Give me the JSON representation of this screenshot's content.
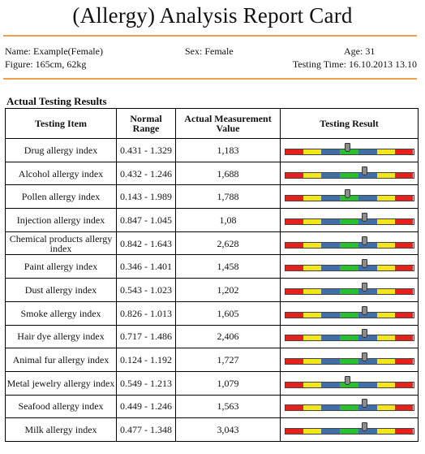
{
  "report": {
    "title": "(Allergy) Analysis Report Card",
    "name_label": "Name:",
    "name": "Example(Female)",
    "sex_label": "Sex:",
    "sex": "Female",
    "age_label": "Age:",
    "age": "31",
    "figure_label": "Figure:",
    "figure": "165cm, 62kg",
    "testing_time_label": "Testing Time:",
    "testing_time": "16.10.2013 13.10",
    "section_title": "Actual Testing Results"
  },
  "table": {
    "headers": {
      "item": "Testing Item",
      "range": "Normal Range",
      "actual": "Actual Measurement Value",
      "result": "Testing Result"
    },
    "rows": [
      {
        "item": "Drug allergy index",
        "range": "0.431 - 1.329",
        "actual": "1,183",
        "level": 0.49
      },
      {
        "item": "Alcohol allergy index",
        "range": "0.432 - 1.246",
        "actual": "1,688",
        "level": 0.62
      },
      {
        "item": "Pollen allergy index",
        "range": "0.143 - 1.989",
        "actual": "1,788",
        "level": 0.49
      },
      {
        "item": "Injection allergy index",
        "range": "0.847 - 1.045",
        "actual": "1,08",
        "level": 0.62
      },
      {
        "item": "Chemical products allergy index",
        "range": "0.842 - 1.643",
        "actual": "2,628",
        "level": 0.62
      },
      {
        "item": "Paint allergy index",
        "range": "0.346 - 1.401",
        "actual": "1,458",
        "level": 0.62
      },
      {
        "item": "Dust allergy index",
        "range": "0.543 - 1.023",
        "actual": "1,202",
        "level": 0.62
      },
      {
        "item": "Smoke allergy index",
        "range": "0.826 - 1.013",
        "actual": "1,605",
        "level": 0.62
      },
      {
        "item": "Hair dye allergy index",
        "range": "0.717 - 1.486",
        "actual": "2,406",
        "level": 0.62
      },
      {
        "item": "Animal fur allergy index",
        "range": "0.124 - 1.192",
        "actual": "1,727",
        "level": 0.62
      },
      {
        "item": "Metal jewelry allergy index",
        "range": "0.549 - 1.213",
        "actual": "1,079",
        "level": 0.49
      },
      {
        "item": "Seafood allergy index",
        "range": "0.449 - 1.246",
        "actual": "1,563",
        "level": 0.62
      },
      {
        "item": "Milk allergy index",
        "range": "0.477 - 1.348",
        "actual": "3,043",
        "level": 0.62
      }
    ]
  },
  "colors": {
    "rule": "#f0a04a",
    "red": "#e8201b",
    "yellow": "#f2e51c",
    "blue": "#3f6fa6",
    "green": "#27c12f"
  }
}
